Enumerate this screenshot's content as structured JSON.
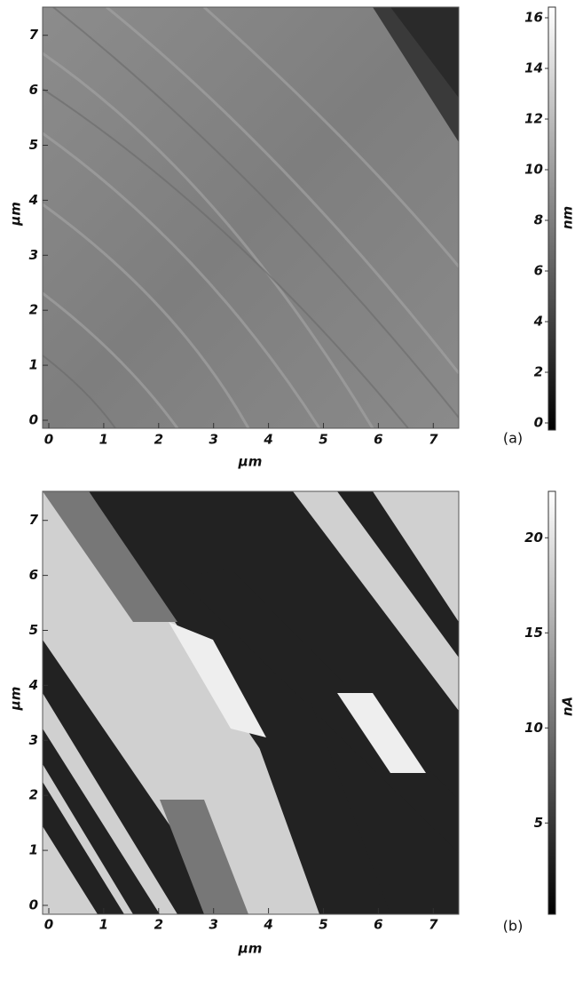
{
  "panels": [
    {
      "label": "(a)",
      "x_label": "µm",
      "y_label": "µm",
      "xticks": [
        0,
        1,
        2,
        3,
        4,
        5,
        6,
        7
      ],
      "yticks": [
        0,
        1,
        2,
        3,
        4,
        5,
        6,
        7
      ],
      "colorbar": {
        "label": "nm",
        "ticks": [
          0,
          2,
          4,
          6,
          8,
          10,
          12,
          14,
          16
        ]
      }
    },
    {
      "label": "(b)",
      "x_label": "µm",
      "y_label": "µm",
      "xticks": [
        0,
        1,
        2,
        3,
        4,
        5,
        6,
        7
      ],
      "yticks": [
        0,
        1,
        2,
        3,
        4,
        5,
        6,
        7
      ],
      "colorbar": {
        "label": "nA",
        "ticks": [
          5,
          10,
          15,
          20
        ]
      }
    }
  ]
}
